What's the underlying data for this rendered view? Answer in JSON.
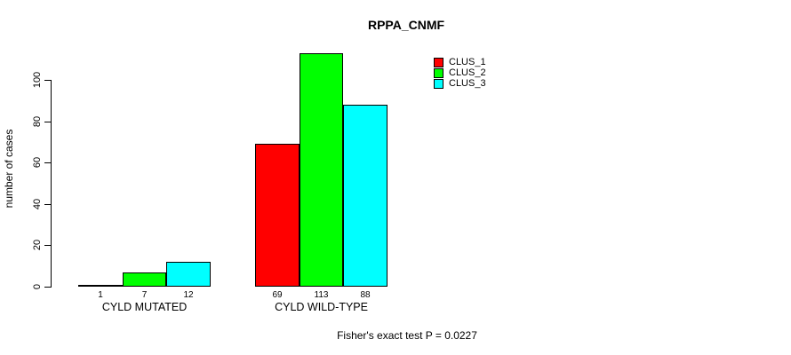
{
  "figure": {
    "background": "#ffffff",
    "text_color": "#000000"
  },
  "chart_data": {
    "type": "bar",
    "title": "RPPA_CNMF",
    "categories": [
      "CYLD MUTATED",
      "CYLD WILD-TYPE"
    ],
    "series": [
      {
        "name": "CLUS_1",
        "color": "#ff0000",
        "values": [
          1,
          69
        ]
      },
      {
        "name": "CLUS_2",
        "color": "#00ff00",
        "values": [
          7,
          113
        ]
      },
      {
        "name": "CLUS_3",
        "color": "#00ffff",
        "values": [
          12,
          88
        ]
      }
    ],
    "xlabel": "",
    "ylabel": "number of cases",
    "ylim": [
      0,
      115
    ],
    "yticks": [
      0,
      20,
      40,
      60,
      80,
      100
    ],
    "bar_border_color": "#000000",
    "grid": false,
    "value_labels_shown": true,
    "legend": {
      "position": "top-right",
      "entries": [
        "CLUS_1",
        "CLUS_2",
        "CLUS_3"
      ]
    },
    "annotation": "Fisher's exact test P = 0.0227"
  }
}
